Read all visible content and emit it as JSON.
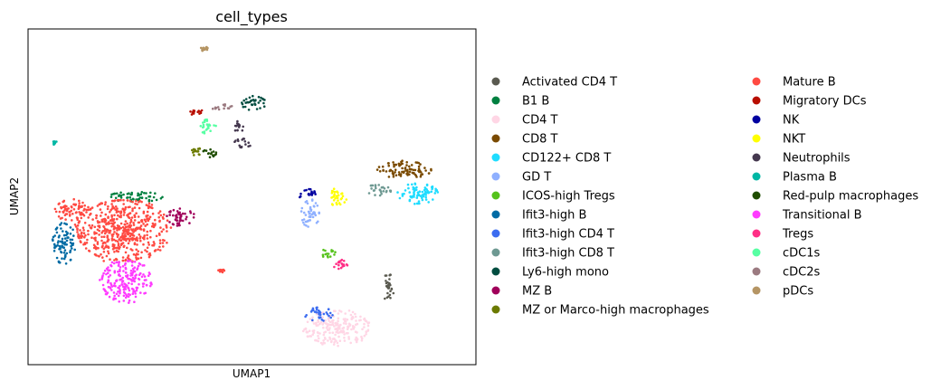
{
  "chart_data": {
    "type": "scatter",
    "title": "cell_types",
    "xlabel": "UMAP1",
    "ylabel": "UMAP2",
    "xlim": [
      0,
      100
    ],
    "ylim": [
      0,
      100
    ],
    "grid": false,
    "ticks": false,
    "legend_placement": "right, outside plot, two columns",
    "series": [
      {
        "name": "Activated CD4 T",
        "color": "#5a5a50",
        "clusters": [
          [
            80.5,
            23,
            1.2,
            4
          ]
        ]
      },
      {
        "name": "B1 B",
        "color": "#008040",
        "clusters": [
          [
            24,
            50,
            6,
            1.5
          ]
        ]
      },
      {
        "name": "CD4 T",
        "color": "#ffd6e5",
        "clusters": [
          [
            69,
            11,
            7,
            5
          ]
        ]
      },
      {
        "name": "CD8 T",
        "color": "#7a4a00",
        "clusters": [
          [
            84,
            58,
            6,
            2.5
          ]
        ]
      },
      {
        "name": "CD122+ CD8 T",
        "color": "#1fdcff",
        "clusters": [
          [
            87,
            51,
            4.5,
            3
          ]
        ]
      },
      {
        "name": "GD T",
        "color": "#8fb0ff",
        "clusters": [
          [
            63,
            45,
            2,
            4
          ]
        ]
      },
      {
        "name": "ICOS-high Tregs",
        "color": "#55c21b",
        "clusters": [
          [
            67,
            33,
            1.7,
            1.5
          ]
        ]
      },
      {
        "name": "Ifit3-high B",
        "color": "#006ba4",
        "clusters": [
          [
            8,
            36,
            2.5,
            6
          ]
        ]
      },
      {
        "name": "Ifit3-high CD4 T",
        "color": "#3c6cf0",
        "clusters": [
          [
            65,
            15,
            3,
            2
          ]
        ]
      },
      {
        "name": "Ifit3-high CD8 T",
        "color": "#6e9992",
        "clusters": [
          [
            78,
            52,
            3,
            1.5
          ]
        ]
      },
      {
        "name": "Ly6-high mono",
        "color": "#004d40",
        "clusters": [
          [
            50,
            78,
            3,
            2
          ]
        ]
      },
      {
        "name": "MZ B",
        "color": "#a0005a",
        "clusters": [
          [
            34,
            44,
            3,
            2.5
          ]
        ]
      },
      {
        "name": "MZ or Marco-high macrophages",
        "color": "#6b7a00",
        "clusters": [
          [
            37.5,
            63.5,
            1.2,
            1.2
          ]
        ]
      },
      {
        "name": "Mature B",
        "color": "#ff4a42",
        "clusters": [
          [
            21,
            40,
            10,
            9
          ],
          [
            10,
            46,
            4,
            3
          ],
          [
            43,
            28,
            0.8,
            0.5
          ]
        ]
      },
      {
        "name": "Migratory DCs",
        "color": "#b80e00",
        "clusters": [
          [
            38,
            75,
            2,
            0.8
          ]
        ]
      },
      {
        "name": "NK",
        "color": "#0000a0",
        "clusters": [
          [
            62,
            51,
            2,
            1.5
          ]
        ]
      },
      {
        "name": "NKT",
        "color": "#ffff00",
        "clusters": [
          [
            69,
            50,
            2.2,
            2.5
          ]
        ]
      },
      {
        "name": "Neutrophils",
        "color": "#45384f",
        "clusters": [
          [
            48,
            66,
            2,
            1.3
          ],
          [
            47,
            71,
            1.2,
            1.5
          ]
        ]
      },
      {
        "name": "Plasma B",
        "color": "#00b7a4",
        "clusters": [
          [
            6,
            66,
            0.5,
            0.6
          ]
        ]
      },
      {
        "name": "Red-pulp macrophages",
        "color": "#1f4d00",
        "clusters": [
          [
            40.5,
            63,
            1.5,
            1.2
          ]
        ]
      },
      {
        "name": "Transitional B",
        "color": "#ff3bff",
        "clusters": [
          [
            22,
            25,
            5.5,
            6
          ]
        ]
      },
      {
        "name": "Tregs",
        "color": "#ff2f86",
        "clusters": [
          [
            70,
            30,
            2,
            1.5
          ]
        ]
      },
      {
        "name": "cDC1s",
        "color": "#57ffa3",
        "clusters": [
          [
            40,
            71,
            2,
            2
          ]
        ]
      },
      {
        "name": "cDC2s",
        "color": "#9b7a80",
        "clusters": [
          [
            43,
            77,
            2.5,
            1
          ]
        ]
      },
      {
        "name": "pDCs",
        "color": "#b59564",
        "clusters": [
          [
            39.5,
            94,
            1,
            0.8
          ]
        ]
      }
    ]
  }
}
